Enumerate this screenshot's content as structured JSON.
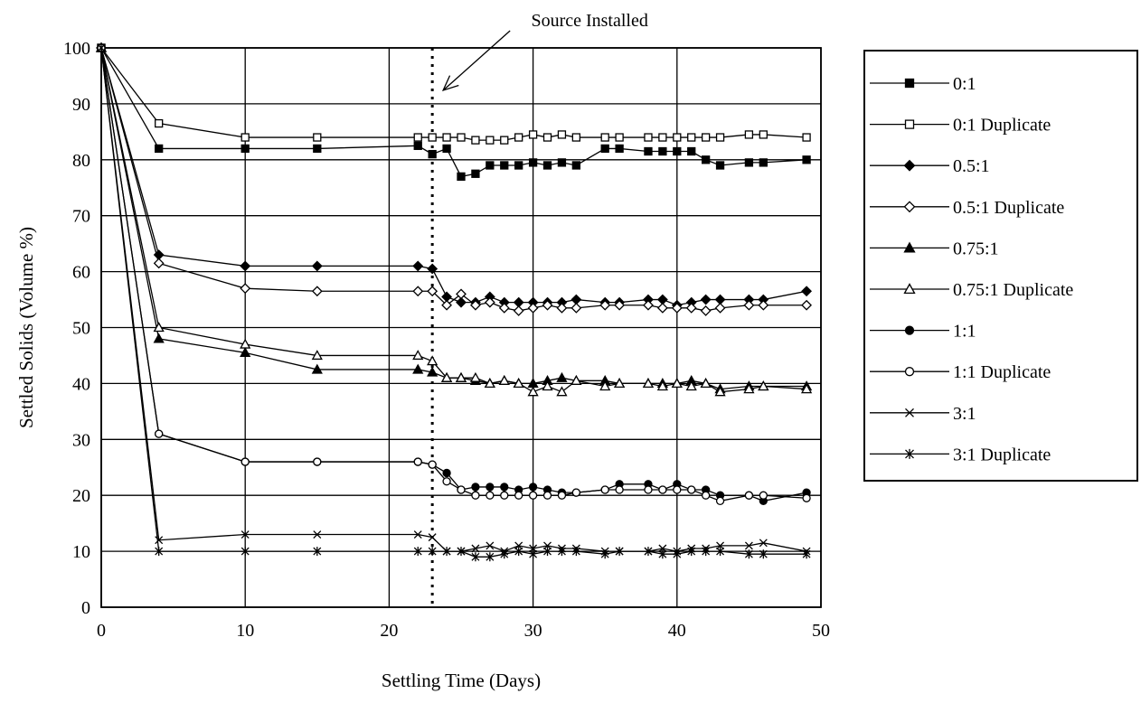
{
  "chart_data": {
    "type": "line",
    "xlabel": "Settling Time (Days)",
    "ylabel": "Settled Solids (Volume %)",
    "xlim": [
      0,
      50
    ],
    "ylim": [
      0,
      100
    ],
    "xticks": [
      0,
      10,
      20,
      30,
      40,
      50
    ],
    "yticks": [
      0,
      10,
      20,
      30,
      40,
      50,
      60,
      70,
      80,
      90,
      100
    ],
    "grid": true,
    "legend_position": "right",
    "annotation": {
      "text": "Source Installed",
      "x": 23
    },
    "series": [
      {
        "name": "0:1",
        "marker": "square-filled",
        "x": [
          0,
          4,
          10,
          15,
          22,
          23,
          24,
          25,
          26,
          27,
          28,
          29,
          30,
          31,
          32,
          33,
          35,
          36,
          38,
          39,
          40,
          41,
          42,
          43,
          45,
          46,
          49
        ],
        "y": [
          100,
          82,
          82,
          82,
          82.5,
          81,
          82,
          77,
          77.5,
          79,
          79,
          79,
          79.5,
          79,
          79.5,
          79,
          82,
          82,
          81.5,
          81.5,
          81.5,
          81.5,
          80,
          79,
          79.5,
          79.5,
          80
        ]
      },
      {
        "name": "0:1 Duplicate",
        "marker": "square-open",
        "x": [
          0,
          4,
          10,
          15,
          22,
          23,
          24,
          25,
          26,
          27,
          28,
          29,
          30,
          31,
          32,
          33,
          35,
          36,
          38,
          39,
          40,
          41,
          42,
          43,
          45,
          46,
          49
        ],
        "y": [
          100,
          86.5,
          84,
          84,
          84,
          84,
          84,
          84,
          83.5,
          83.5,
          83.5,
          84,
          84.5,
          84,
          84.5,
          84,
          84,
          84,
          84,
          84,
          84,
          84,
          84,
          84,
          84.5,
          84.5,
          84
        ]
      },
      {
        "name": "0.5:1",
        "marker": "diamond-filled",
        "x": [
          0,
          4,
          10,
          15,
          22,
          23,
          24,
          25,
          26,
          27,
          28,
          29,
          30,
          31,
          32,
          33,
          35,
          36,
          38,
          39,
          40,
          41,
          42,
          43,
          45,
          46,
          49
        ],
        "y": [
          100,
          63,
          61,
          61,
          61,
          60.5,
          55.5,
          54.5,
          54.5,
          55.5,
          54.5,
          54.5,
          54.5,
          54.5,
          54.5,
          55,
          54.5,
          54.5,
          55,
          55,
          54,
          54.5,
          55,
          55,
          55,
          55,
          56.5
        ]
      },
      {
        "name": "0.5:1 Duplicate",
        "marker": "diamond-open",
        "x": [
          0,
          4,
          10,
          15,
          22,
          23,
          24,
          25,
          26,
          27,
          28,
          29,
          30,
          31,
          32,
          33,
          35,
          36,
          38,
          39,
          40,
          41,
          42,
          43,
          45,
          46,
          49
        ],
        "y": [
          100,
          61.5,
          57,
          56.5,
          56.5,
          56.5,
          54,
          56,
          54,
          54.5,
          53.5,
          53,
          53.5,
          54,
          53.5,
          53.5,
          54,
          54,
          54,
          53.5,
          53.5,
          53.5,
          53,
          53.5,
          54,
          54,
          54
        ]
      },
      {
        "name": "0.75:1",
        "marker": "triangle-filled",
        "x": [
          0,
          4,
          10,
          15,
          22,
          23,
          24,
          25,
          26,
          27,
          28,
          29,
          30,
          31,
          32,
          33,
          35,
          36,
          38,
          39,
          40,
          41,
          42,
          43,
          45,
          46,
          49
        ],
        "y": [
          100,
          48,
          45.5,
          42.5,
          42.5,
          42,
          41,
          41,
          40.5,
          40,
          40.5,
          40,
          40,
          40.5,
          41,
          40.5,
          40.5,
          40,
          40,
          40,
          40,
          40.5,
          40,
          39,
          39.5,
          39.5,
          39.5
        ]
      },
      {
        "name": "0.75:1 Duplicate",
        "marker": "triangle-open",
        "x": [
          0,
          4,
          10,
          15,
          22,
          23,
          24,
          25,
          26,
          27,
          28,
          29,
          30,
          31,
          32,
          33,
          35,
          36,
          38,
          39,
          40,
          41,
          42,
          43,
          45,
          46,
          49
        ],
        "y": [
          100,
          50,
          47,
          45,
          45,
          44,
          41,
          41,
          41,
          40,
          40.5,
          40,
          38.5,
          39.5,
          38.5,
          40.5,
          39.5,
          40,
          40,
          39.5,
          40,
          39.5,
          40,
          38.5,
          39,
          39.5,
          39
        ]
      },
      {
        "name": "1:1",
        "marker": "circle-filled",
        "x": [
          0,
          4,
          10,
          15,
          22,
          23,
          24,
          25,
          26,
          27,
          28,
          29,
          30,
          31,
          32,
          33,
          35,
          36,
          38,
          39,
          40,
          41,
          42,
          43,
          45,
          46,
          49
        ],
        "y": [
          100,
          31,
          26,
          26,
          26,
          25.5,
          24,
          21,
          21.5,
          21.5,
          21.5,
          21,
          21.5,
          21,
          20.5,
          20.5,
          21,
          22,
          22,
          21,
          22,
          21,
          21,
          20,
          20,
          19,
          20.5
        ]
      },
      {
        "name": "1:1 Duplicate",
        "marker": "circle-open",
        "x": [
          0,
          4,
          10,
          15,
          22,
          23,
          24,
          25,
          26,
          27,
          28,
          29,
          30,
          31,
          32,
          33,
          35,
          36,
          38,
          39,
          40,
          41,
          42,
          43,
          45,
          46,
          49
        ],
        "y": [
          100,
          31,
          26,
          26,
          26,
          25.5,
          22.5,
          21,
          20,
          20,
          20,
          20,
          20,
          20,
          20,
          20.5,
          21,
          21,
          21,
          21,
          21,
          21,
          20,
          19,
          20,
          20,
          19.5
        ]
      },
      {
        "name": "3:1",
        "marker": "x",
        "x": [
          0,
          4,
          10,
          15,
          22,
          23,
          24,
          25,
          26,
          27,
          28,
          29,
          30,
          31,
          32,
          33,
          35,
          36,
          38,
          39,
          40,
          41,
          42,
          43,
          45,
          46,
          49
        ],
        "y": [
          100,
          12,
          13,
          13,
          13,
          12.5,
          10,
          10,
          10.5,
          11,
          10,
          11,
          10.5,
          11,
          10.5,
          10.5,
          10,
          10,
          10,
          10.5,
          10,
          10.5,
          10.5,
          11,
          11,
          11.5,
          10
        ]
      },
      {
        "name": "3:1 Duplicate",
        "marker": "star",
        "x": [
          0,
          4,
          10,
          15,
          22,
          23,
          24,
          25,
          26,
          27,
          28,
          29,
          30,
          31,
          32,
          33,
          35,
          36,
          38,
          39,
          40,
          41,
          42,
          43,
          45,
          46,
          49
        ],
        "y": [
          100,
          10,
          10,
          10,
          10,
          10,
          10,
          10,
          9,
          9,
          9.5,
          10,
          9.5,
          10,
          10,
          10,
          9.5,
          10,
          10,
          9.5,
          9.5,
          10,
          10,
          10,
          9.5,
          9.5,
          9.5
        ]
      }
    ]
  }
}
